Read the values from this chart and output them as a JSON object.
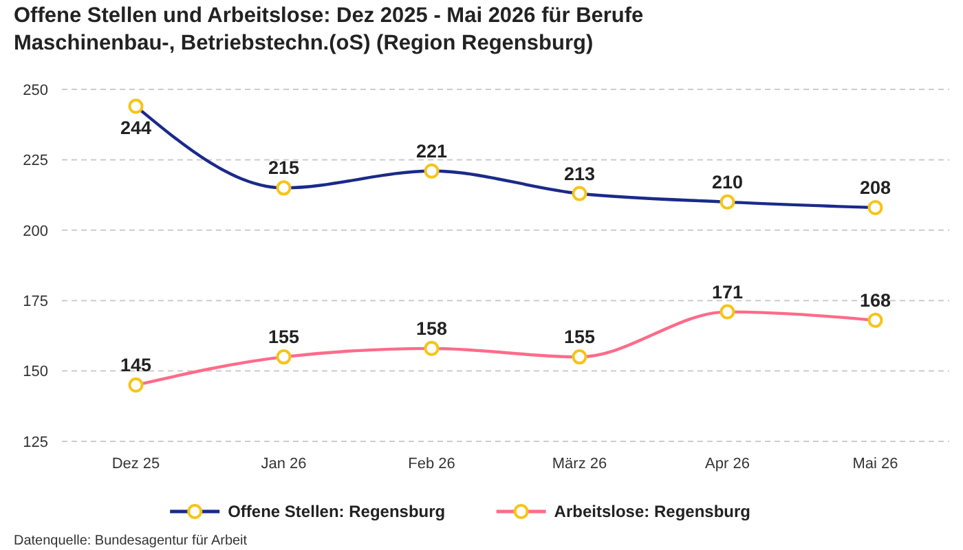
{
  "chart_data": {
    "type": "line",
    "title": "Offene Stellen und Arbeitslose: Dez 2025 - Mai 2026 für Berufe Maschinenbau-, Betriebstechn.(oS) (Region Regensburg)",
    "categories": [
      "Dez 25",
      "Jan 26",
      "Feb 26",
      "März 26",
      "Apr 26",
      "Mai 26"
    ],
    "series": [
      {
        "name": "Offene Stellen: Regensburg",
        "color": "#1a2a8a",
        "values": [
          244,
          215,
          221,
          213,
          210,
          208
        ]
      },
      {
        "name": "Arbeitslose: Regensburg",
        "color": "#ff6b8a",
        "values": [
          145,
          155,
          158,
          155,
          171,
          168
        ]
      }
    ],
    "ylim": [
      125,
      250
    ],
    "yticks": [
      125,
      150,
      175,
      200,
      225,
      250
    ],
    "grid": "y",
    "legend": "bottom",
    "marker": "circle",
    "line_style": "solid",
    "data_labels": true,
    "annotations": [
      "Datenquelle: Bundesagentur für Arbeit"
    ]
  }
}
